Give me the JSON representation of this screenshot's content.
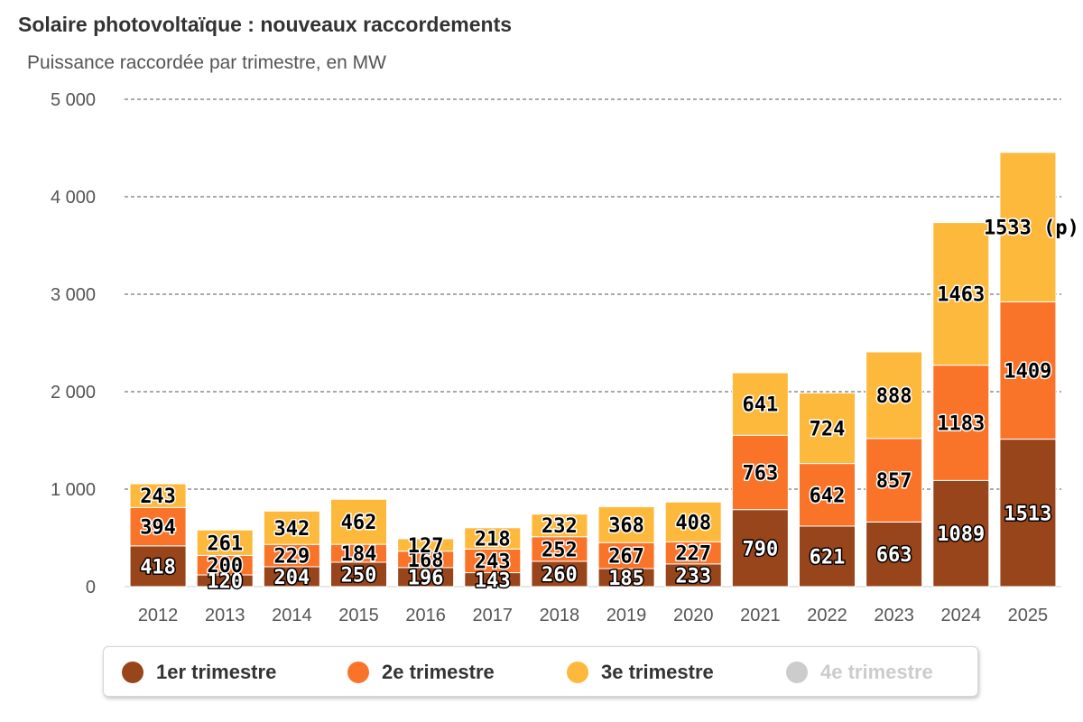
{
  "title": "Solaire photovoltaïque : nouveaux raccordements",
  "subtitle": "Puissance raccordée par trimestre, en MW",
  "colors": {
    "q1": "#99451b",
    "q2": "#f97428",
    "q3": "#fdb93c",
    "q4_hidden": "#cccccc",
    "grid": "#555555",
    "axis_text": "#555555"
  },
  "legend": [
    {
      "label": "1er trimestre",
      "color": "#99451b",
      "visible": true
    },
    {
      "label": "2e trimestre",
      "color": "#f97428",
      "visible": true
    },
    {
      "label": "3e trimestre",
      "color": "#fdb93c",
      "visible": true
    },
    {
      "label": "4e trimestre",
      "color": "#cccccc",
      "visible": false
    }
  ],
  "chart_data": {
    "type": "bar",
    "stacked": true,
    "categories": [
      "2012",
      "2013",
      "2014",
      "2015",
      "2016",
      "2017",
      "2018",
      "2019",
      "2020",
      "2021",
      "2022",
      "2023",
      "2024",
      "2025"
    ],
    "series": [
      {
        "name": "1er trimestre",
        "values": [
          418,
          120,
          204,
          250,
          196,
          143,
          260,
          185,
          233,
          790,
          621,
          663,
          1089,
          1513
        ]
      },
      {
        "name": "2e trimestre",
        "values": [
          394,
          200,
          229,
          184,
          168,
          243,
          252,
          267,
          227,
          763,
          642,
          857,
          1183,
          1409
        ]
      },
      {
        "name": "3e trimestre",
        "values": [
          243,
          261,
          342,
          462,
          127,
          218,
          232,
          368,
          408,
          641,
          724,
          888,
          1463,
          1533
        ]
      }
    ],
    "data_label_overrides": {
      "2-13": "1533 (p)"
    },
    "yticks": [
      "0",
      "1 000",
      "2 000",
      "3 000",
      "4 000",
      "5 000"
    ],
    "ylim": [
      0,
      5000
    ],
    "grid": true,
    "legend_position": "bottom"
  }
}
